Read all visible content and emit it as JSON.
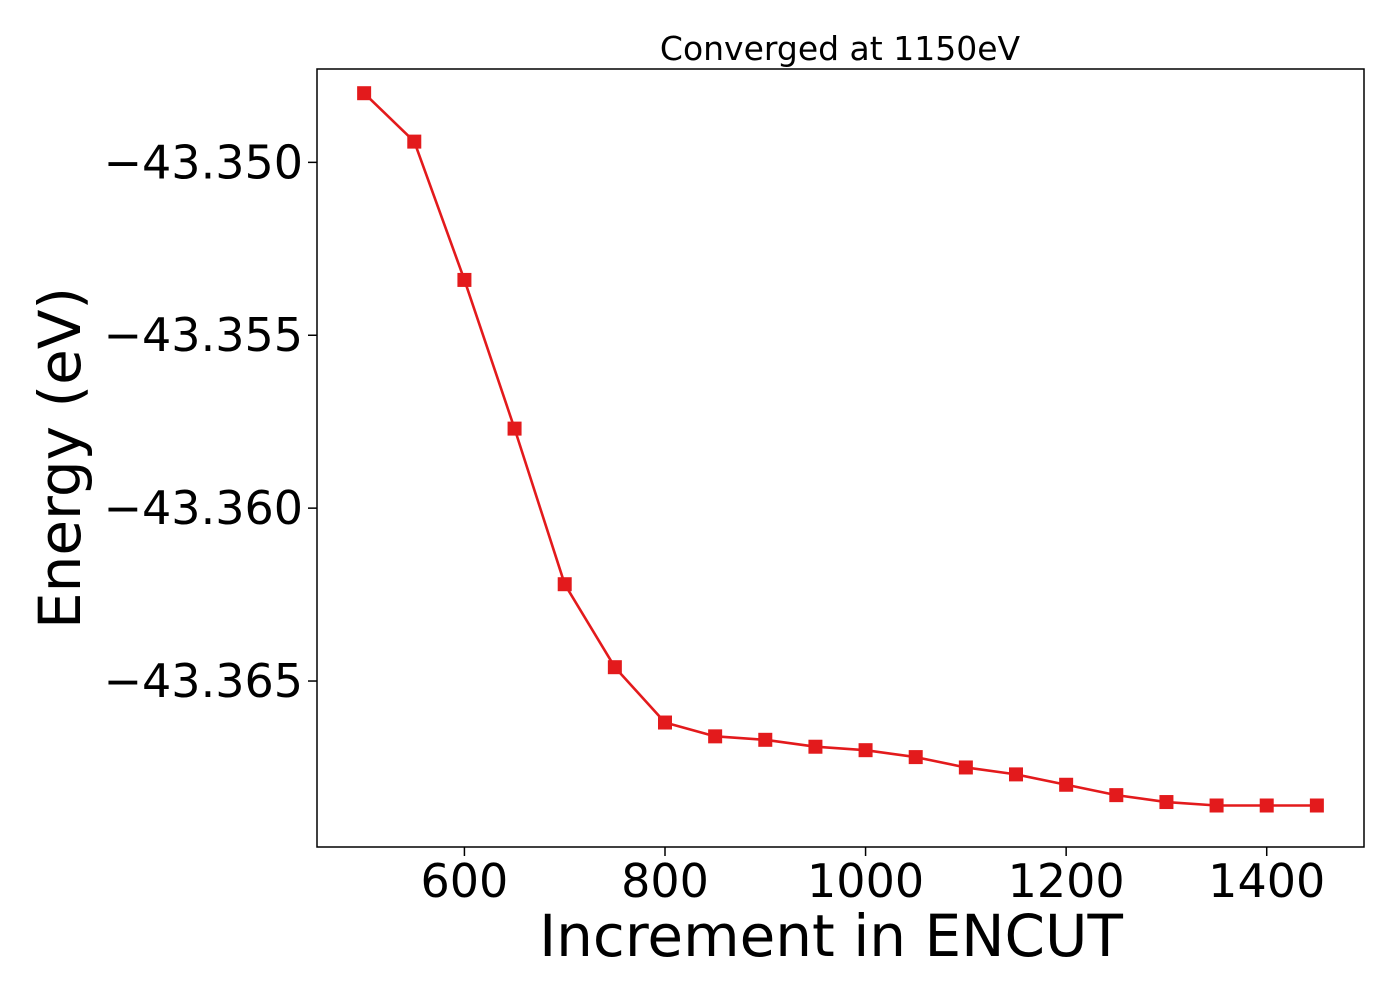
{
  "chart_data": {
    "type": "line",
    "title": "Converged at 1150eV",
    "xlabel": "Increment in ENCUT",
    "ylabel": "Energy (eV)",
    "xlim": [
      453,
      1497
    ],
    "ylim": [
      -43.3698,
      -43.3473
    ],
    "xticks": [
      600,
      800,
      1000,
      1200,
      1400
    ],
    "xtick_labels": [
      "600",
      "800",
      "1000",
      "1200",
      "1400"
    ],
    "yticks": [
      -43.35,
      -43.355,
      -43.36,
      -43.365
    ],
    "ytick_labels": [
      "−43.350",
      "−43.355",
      "−43.360",
      "−43.365"
    ],
    "grid": false,
    "legend": "none",
    "series": [
      {
        "color": "#e31a1c",
        "marker": "square",
        "x": [
          500,
          550,
          600,
          650,
          700,
          750,
          800,
          850,
          900,
          950,
          1000,
          1050,
          1100,
          1150,
          1200,
          1250,
          1300,
          1350,
          1400,
          1450
        ],
        "y": [
          -43.348,
          -43.3494,
          -43.3534,
          -43.3577,
          -43.3622,
          -43.3646,
          -43.3662,
          -43.3666,
          -43.3667,
          -43.3669,
          -43.367,
          -43.3672,
          -43.3675,
          -43.3677,
          -43.368,
          -43.3683,
          -43.3685,
          -43.3686,
          -43.3686,
          -43.3686
        ]
      }
    ]
  }
}
